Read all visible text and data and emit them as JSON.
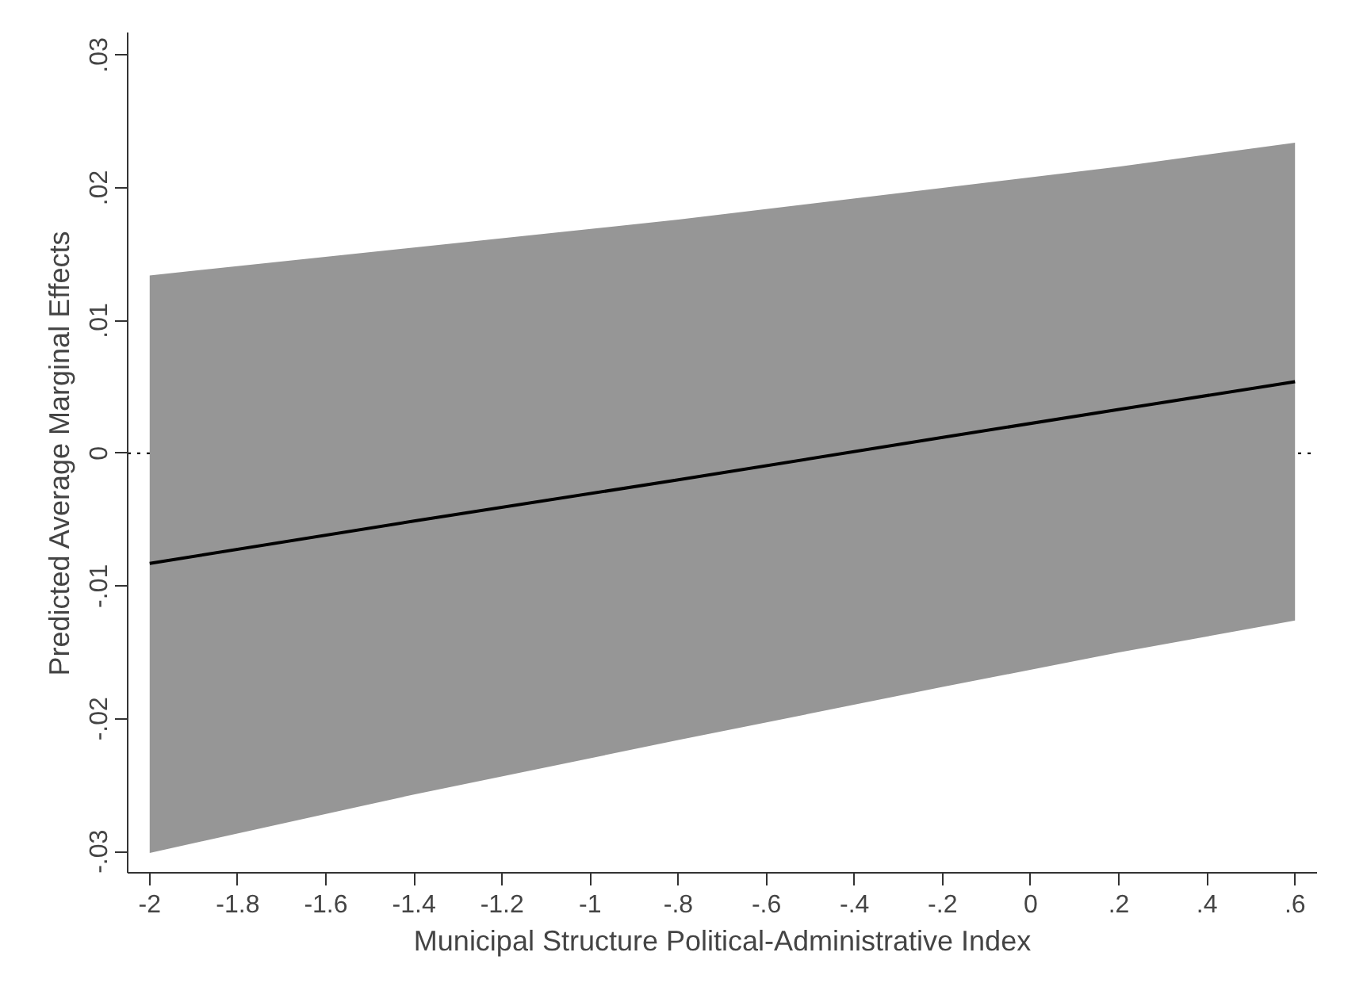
{
  "chart_data": {
    "type": "line",
    "xlabel": "Municipal Structure Political-Administrative Index",
    "ylabel": "Predicted Average Marginal Effects",
    "x": [
      -2,
      -1.4,
      -0.8,
      -0.2,
      0.2,
      0.6
    ],
    "series": [
      {
        "color": "#000000",
        "values": [
          -0.0083,
          -0.0051,
          -0.002,
          0.0012,
          0.0033,
          0.0054
        ],
        "lower": [
          -0.0301,
          -0.0257,
          -0.0216,
          -0.0176,
          -0.015,
          -0.0126
        ],
        "upper": [
          0.0134,
          0.0155,
          0.0176,
          0.02,
          0.0216,
          0.0234
        ]
      }
    ],
    "xlim": [
      -2.05,
      0.65
    ],
    "ylim": [
      -0.0316,
      0.0317
    ],
    "xticks": [
      {
        "value": -2,
        "label": "-2"
      },
      {
        "value": -1.8,
        "label": "-1.8"
      },
      {
        "value": -1.6,
        "label": "-1.6"
      },
      {
        "value": -1.4,
        "label": "-1.4"
      },
      {
        "value": -1.2,
        "label": "-1.2"
      },
      {
        "value": -1,
        "label": "-1"
      },
      {
        "value": -0.8,
        "label": "-.8"
      },
      {
        "value": -0.6,
        "label": "-.6"
      },
      {
        "value": -0.4,
        "label": "-.4"
      },
      {
        "value": -0.2,
        "label": "-.2"
      },
      {
        "value": 0,
        "label": "0"
      },
      {
        "value": 0.2,
        "label": ".2"
      },
      {
        "value": 0.4,
        "label": ".4"
      },
      {
        "value": 0.6,
        "label": ".6"
      }
    ],
    "yticks": [
      {
        "value": -0.03,
        "label": "-.03"
      },
      {
        "value": -0.02,
        "label": "-.02"
      },
      {
        "value": -0.01,
        "label": "-.01"
      },
      {
        "value": 0,
        "label": "0"
      },
      {
        "value": 0.01,
        "label": ".01"
      },
      {
        "value": 0.02,
        "label": ".02"
      },
      {
        "value": 0.03,
        "label": ".03"
      }
    ],
    "ref_lines": [
      {
        "axis": "y",
        "value": 0,
        "color": "#000000",
        "line_style": "dotted"
      }
    ],
    "grid": false,
    "line_style": "solid",
    "marker": "none"
  }
}
